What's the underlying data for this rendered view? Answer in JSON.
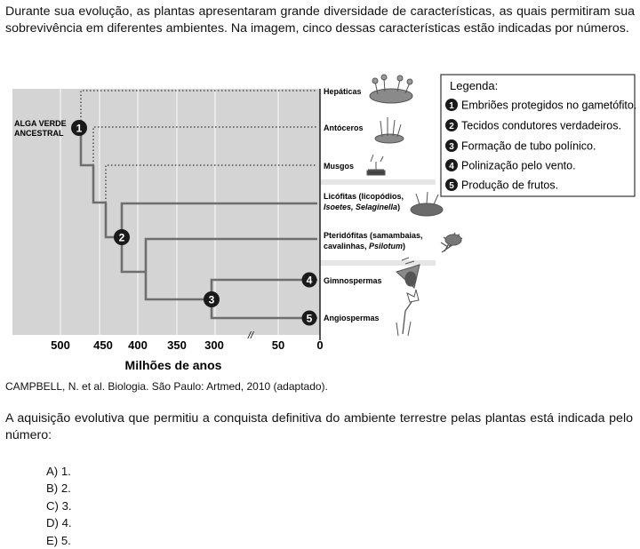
{
  "intro": "Durante sua evolução, as plantas apresentaram grande diversidade de características, as quais permitiram sua sobrevivência em diferentes ambientes. Na imagem, cinco dessas características estão indicadas por números.",
  "diagram": {
    "root_label_line1": "ALGA VERDE",
    "root_label_line2": "ANCESTRAL",
    "taxa": {
      "hepaticas": "Hepáticas",
      "antoceros": "Antóceros",
      "musgos": "Musgos",
      "licofitas_line1": "Licófitas (licopódios,",
      "licofitas_line2_a": "Isoetes, ",
      "licofitas_line2_b": "Selaginella",
      "licofitas_line2_c": ")",
      "pteridofitas_line1": "Pteridófitas (samambaias,",
      "pteridofitas_line2_a": "cavalinhas, ",
      "pteridofitas_line2_b": "Psilotum",
      "pteridofitas_line2_c": ")",
      "gimnospermas": "Gimnospermas",
      "angiospermas": "Angiospermas"
    },
    "node_numbers": [
      "1",
      "2",
      "3",
      "4",
      "5"
    ],
    "axis": {
      "ticks": [
        "500",
        "450",
        "400",
        "350",
        "300",
        "50",
        "0"
      ],
      "break_symbol": "//",
      "label": "Milhões de anos"
    },
    "legend": {
      "title": "Legenda:",
      "items": [
        {
          "number": "1",
          "text": "Embriões protegidos no gametófito."
        },
        {
          "number": "2",
          "text": "Tecidos condutores verdadeiros."
        },
        {
          "number": "3",
          "text": "Formação de tubo polínico."
        },
        {
          "number": "4",
          "text": "Polinização pelo vento."
        },
        {
          "number": "5",
          "text": "Produção de frutos."
        }
      ]
    },
    "colors": {
      "background": "#d4d4d4",
      "branch": "#6e6e6e",
      "node": "#1a1a1a",
      "grid": "#f2f2f2"
    }
  },
  "caption": "CAMPBELL, N. et al. Biologia. São Paulo: Artmed, 2010 (adaptado).",
  "question": "A aquisição evolutiva que permitiu a conquista definitiva do ambiente terrestre pelas plantas está indicada pelo número:",
  "options": [
    "A) 1.",
    "B) 2.",
    "C) 3.",
    "D) 4.",
    "E) 5."
  ]
}
